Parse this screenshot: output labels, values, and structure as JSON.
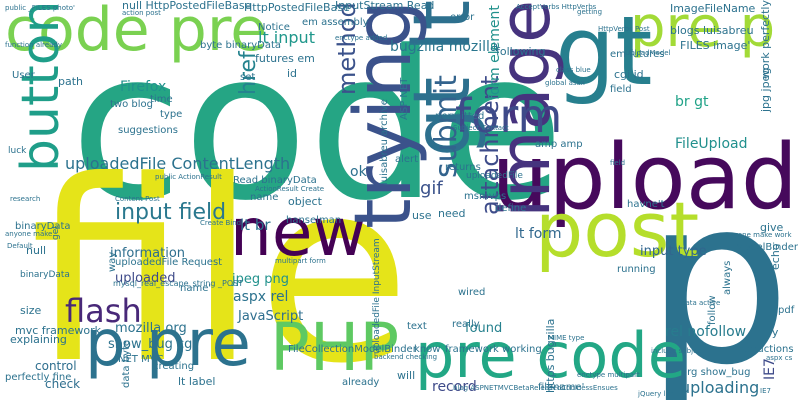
{
  "words": [
    {
      "text": "code",
      "color": "#25a584"
    },
    {
      "text": "file",
      "color": "#e5e419"
    },
    {
      "text": "p",
      "color": "#2c728e"
    },
    {
      "text": "upload",
      "color": "#46095c"
    },
    {
      "text": "gt lt",
      "color": "#2d708e"
    },
    {
      "text": "code pre",
      "color": "#7ad151"
    },
    {
      "text": "pre p",
      "color": "#a2da37"
    },
    {
      "text": "gt",
      "color": "#277f8e"
    },
    {
      "text": "new",
      "color": "#440154"
    },
    {
      "text": "post",
      "color": "#b5de2b"
    },
    {
      "text": "p pre",
      "color": "#2c728e"
    },
    {
      "text": "PHP",
      "color": "#5ec962"
    },
    {
      "text": "pre code",
      "color": "#22a785"
    },
    {
      "text": "trying",
      "color": "#3b528b"
    },
    {
      "text": "image",
      "color": "#46337e"
    },
    {
      "text": "form",
      "color": "#3e4a89"
    },
    {
      "text": "button",
      "color": "#1f9e89"
    },
    {
      "text": "flash",
      "color": "#482878"
    },
    {
      "text": "input field",
      "color": "#2a788e"
    },
    {
      "text": "uploadedFile ContentLength",
      "color": "#2c728e"
    },
    {
      "text": "method",
      "color": "#3b528b"
    },
    {
      "text": "submit",
      "color": "#33638d"
    },
    {
      "text": "href",
      "color": "#25838e"
    },
    {
      "text": "lt input",
      "color": "#1f978b"
    },
    {
      "text": "bugzilla mozilla",
      "color": "#2a768e"
    },
    {
      "text": "Firefox",
      "color": "#20928c"
    },
    {
      "text": "JavaScript",
      "color": "#2e6e8e"
    },
    {
      "text": "aspx rel",
      "color": "#2c728e"
    },
    {
      "text": "rel nofollow",
      "color": "#287c8e"
    },
    {
      "text": "uploading",
      "color": "#2c728e"
    },
    {
      "text": "attachment",
      "color": "#3e4c8a"
    },
    {
      "text": "FileUpload",
      "color": "#21908d"
    },
    {
      "text": "input type",
      "color": "#31668e"
    },
    {
      "text": "ok",
      "color": "#2d708e"
    },
    {
      "text": "gif",
      "color": "#3b528b"
    },
    {
      "text": "record",
      "color": "#3e4a89"
    },
    {
      "text": "uploaded",
      "color": "#3e4a89"
    },
    {
      "text": "control",
      "color": "#2e6e8e"
    },
    {
      "text": "check",
      "color": "#2e6e8e"
    },
    {
      "text": "mozilla org",
      "color": "#2c728e"
    },
    {
      "text": "show_bug cgi",
      "color": "#2c728e"
    },
    {
      "text": "information",
      "color": "#2e6e8e"
    },
    {
      "text": "form element",
      "color": "#21918c"
    },
    {
      "text": "br gt",
      "color": "#1fa287"
    },
    {
      "text": "lt form",
      "color": "#31688e"
    },
    {
      "text": "lt br",
      "color": "#2c728e"
    },
    {
      "text": "IE7",
      "color": "#3e4a89"
    },
    {
      "text": "found",
      "color": "#26818e"
    },
    {
      "text": "jpeg png",
      "color": "#21918c"
    },
    {
      "text": "null HttpPostedFileBase",
      "color": "#2c728e"
    },
    {
      "text": "HttpPostedFileBase",
      "color": "#2c728e"
    },
    {
      "text": "InputStream Read",
      "color": "#2c728e"
    },
    {
      "text": "ImageFileName",
      "color": "#2c728e"
    },
    {
      "text": "blogs luisabreu",
      "color": "#2c728e"
    },
    {
      "text": "FILES image'",
      "color": "#2c728e"
    },
    {
      "text": "futures em",
      "color": "#2c728e"
    },
    {
      "text": "em futures",
      "color": "#2c728e"
    },
    {
      "text": "byte binaryData",
      "color": "#2c728e"
    },
    {
      "text": "em assembly",
      "color": "#2c728e"
    },
    {
      "text": "binaryData",
      "color": "#2c728e"
    },
    {
      "text": "path",
      "color": "#2c728e"
    },
    {
      "text": "User",
      "color": "#2c728e"
    },
    {
      "text": "two blog",
      "color": "#2c728e"
    },
    {
      "text": "time",
      "color": "#2c728e"
    },
    {
      "text": "type",
      "color": "#2c728e"
    },
    {
      "text": "suggestions",
      "color": "#2c728e"
    },
    {
      "text": "Notice",
      "color": "#2c728e"
    },
    {
      "text": "set",
      "color": "#2c728e"
    },
    {
      "text": "id",
      "color": "#2c728e"
    },
    {
      "text": "cgi id",
      "color": "#2c728e"
    },
    {
      "text": "error",
      "color": "#2c728e"
    },
    {
      "text": "following",
      "color": "#2c728e"
    },
    {
      "text": "luisabreu archive",
      "color": "#2c728e"
    },
    {
      "text": "ASP NET",
      "color": "#2c728e"
    },
    {
      "text": "permitted",
      "color": "#2c728e"
    },
    {
      "text": "returns",
      "color": "#2c728e"
    },
    {
      "text": "alert",
      "color": "#2c728e"
    },
    {
      "text": "field",
      "color": "#2c728e"
    },
    {
      "text": "jpg jpeg",
      "color": "#2c728e"
    },
    {
      "text": "work perfectly",
      "color": "#2c728e"
    },
    {
      "text": "amp amp",
      "color": "#2c728e"
    },
    {
      "text": "msmvps",
      "color": "#2c728e"
    },
    {
      "text": "define",
      "color": "#2c728e"
    },
    {
      "text": "need",
      "color": "#2c728e"
    },
    {
      "text": "use",
      "color": "#2c728e"
    },
    {
      "text": "havne't",
      "color": "#2c728e"
    },
    {
      "text": "give",
      "color": "#2c728e"
    },
    {
      "text": "echo",
      "color": "#2c728e"
    },
    {
      "text": "name",
      "color": "#2c728e"
    },
    {
      "text": "object",
      "color": "#2c728e"
    },
    {
      "text": "hanselman",
      "color": "#2c728e"
    },
    {
      "text": "Read binaryData",
      "color": "#2c728e"
    },
    {
      "text": "null",
      "color": "#2c728e"
    },
    {
      "text": "uploadedFile Request",
      "color": "#2c728e"
    },
    {
      "text": "name'",
      "color": "#2c728e"
    },
    {
      "text": "way",
      "color": "#2c728e"
    },
    {
      "text": "mvc framework",
      "color": "#2c728e"
    },
    {
      "text": "explaining",
      "color": "#2c728e"
    },
    {
      "text": "size",
      "color": "#2c728e"
    },
    {
      "text": "NET MVC",
      "color": "#2c728e"
    },
    {
      "text": "perfectly fine",
      "color": "#2c728e"
    },
    {
      "text": "creating",
      "color": "#2c728e"
    },
    {
      "text": "data byte",
      "color": "#2c728e"
    },
    {
      "text": "lt label",
      "color": "#2c728e"
    },
    {
      "text": "FileCollectionModelBinder",
      "color": "#2c728e"
    },
    {
      "text": "framework working",
      "color": "#2c728e"
    },
    {
      "text": "text",
      "color": "#2c728e"
    },
    {
      "text": "know",
      "color": "#2c728e"
    },
    {
      "text": "really",
      "color": "#2c728e"
    },
    {
      "text": "wired",
      "color": "#2c728e"
    },
    {
      "text": "already",
      "color": "#2c728e"
    },
    {
      "text": "will",
      "color": "#2c728e"
    },
    {
      "text": "https bugzilla",
      "color": "#2c728e"
    },
    {
      "text": "filename'",
      "color": "#2c728e"
    },
    {
      "text": "org show_bug",
      "color": "#2c728e"
    },
    {
      "text": "instructions",
      "color": "#2c728e"
    },
    {
      "text": "try",
      "color": "#2c728e"
    },
    {
      "text": "running",
      "color": "#2c728e"
    },
    {
      "text": "ModelBinder",
      "color": "#2c728e"
    },
    {
      "text": "always",
      "color": "#2c728e"
    },
    {
      "text": "follow",
      "color": "#2c728e"
    },
    {
      "text": "pdf",
      "color": "#2c728e"
    },
    {
      "text": "uploadedFile",
      "color": "#2c728e"
    },
    {
      "text": "uploadedFile InputStream",
      "color": "#2c728e"
    },
    {
      "text": "luck",
      "color": "#2c728e"
    },
    {
      "text": "binaryData",
      "color": "#2c728e"
    },
    {
      "text": "get",
      "color": "#2c728e"
    },
    {
      "text": "mysql_real_escape_string _POST",
      "color": "#2c728e"
    },
    {
      "text": "action post",
      "color": "#2c728e"
    },
    {
      "text": "function already",
      "color": "#2c728e"
    },
    {
      "text": "public _FILES photo'",
      "color": "#2c728e"
    },
    {
      "text": "enctype added",
      "color": "#2c728e"
    },
    {
      "text": "AcceptVerbs HttpVerbs",
      "color": "#2c728e"
    },
    {
      "text": "HttpVerbs Post",
      "color": "#2c728e"
    },
    {
      "text": "getting",
      "color": "#2c728e"
    },
    {
      "text": "UploadModel",
      "color": "#2c728e"
    },
    {
      "text": "global asax",
      "color": "#2c728e"
    },
    {
      "text": "class blue",
      "color": "#2c728e"
    },
    {
      "text": "Subject Contact",
      "color": "#2c728e"
    },
    {
      "text": "research",
      "color": "#2c728e"
    },
    {
      "text": "public ActionResult",
      "color": "#2c728e"
    },
    {
      "text": "ActionResult Create",
      "color": "#2c728e"
    },
    {
      "text": "Content Post",
      "color": "#2c728e"
    },
    {
      "text": "Create Bind",
      "color": "#2c728e"
    },
    {
      "text": "anyone make",
      "color": "#2c728e"
    },
    {
      "text": "multipart form",
      "color": "#2c728e"
    },
    {
      "text": "MIME type",
      "color": "#2c728e"
    },
    {
      "text": "enctype multipart",
      "color": "#2c728e"
    },
    {
      "text": "backend checking",
      "color": "#2c728e"
    },
    {
      "text": "blog ASPNETMVCBetaReleasedCoolnessEnsues",
      "color": "#2c728e"
    },
    {
      "text": "include subject",
      "color": "#2c728e"
    },
    {
      "text": "jQuery limit",
      "color": "#2c728e"
    },
    {
      "text": "data active",
      "color": "#2c728e"
    },
    {
      "text": "aspx cs",
      "color": "#2c728e"
    },
    {
      "text": "anyone make work",
      "color": "#2c728e"
    },
    {
      "text": "Default",
      "color": "#2c728e"
    },
    {
      "text": "field",
      "color": "#2c728e"
    },
    {
      "text": "IE7",
      "color": "#2c728e"
    }
  ]
}
